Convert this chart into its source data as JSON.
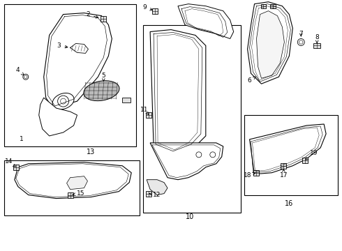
{
  "bg_color": "#ffffff",
  "line_color": "#000000",
  "fig_w": 4.9,
  "fig_h": 3.6,
  "dpi": 100
}
